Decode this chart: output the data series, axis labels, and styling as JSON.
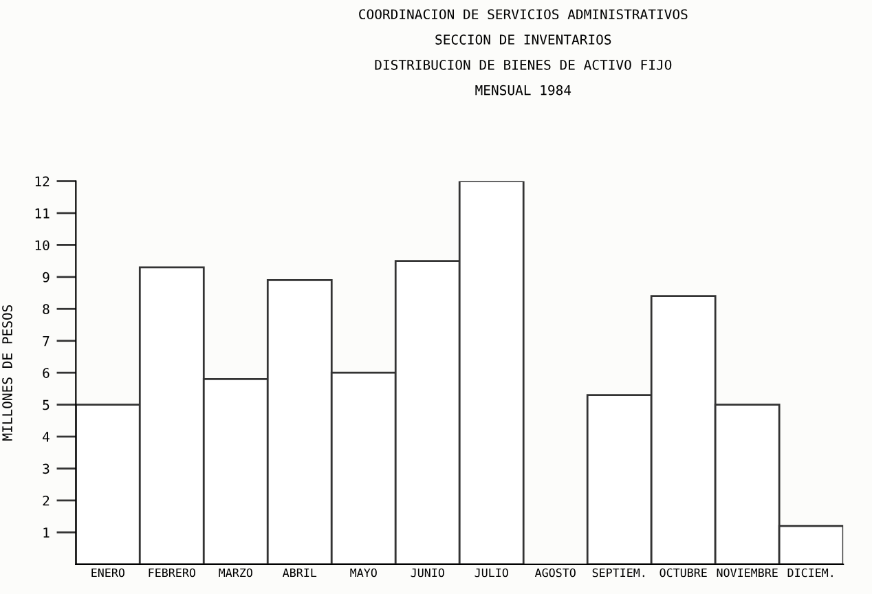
{
  "chart_data": {
    "type": "bar",
    "title": "COORDINACION DE SERVICIOS ADMINISTRATIVOS\nSECCION DE INVENTARIOS\nDISTRIBUCION DE BIENES DE ACTIVO FIJO\nMENSUAL 1984",
    "ylabel": "MILLONES DE PESOS",
    "categories": [
      "ENERO",
      "FEBRERO",
      "MARZO",
      "ABRIL",
      "MAYO",
      "JUNIO",
      "JULIO",
      "AGOSTO",
      "SEPTIEM.",
      "OCTUBRE",
      "NOVIEMBRE",
      "DICIEM."
    ],
    "values": [
      5.0,
      9.3,
      5.8,
      8.9,
      6.0,
      9.5,
      12.0,
      null,
      5.3,
      8.4,
      5.0,
      1.2
    ],
    "color": "#ffffff",
    "ylim": [
      0,
      12
    ],
    "yticks": [
      1,
      2,
      3,
      4,
      5,
      6,
      7,
      8,
      9,
      10,
      11,
      12
    ],
    "grid": false
  }
}
